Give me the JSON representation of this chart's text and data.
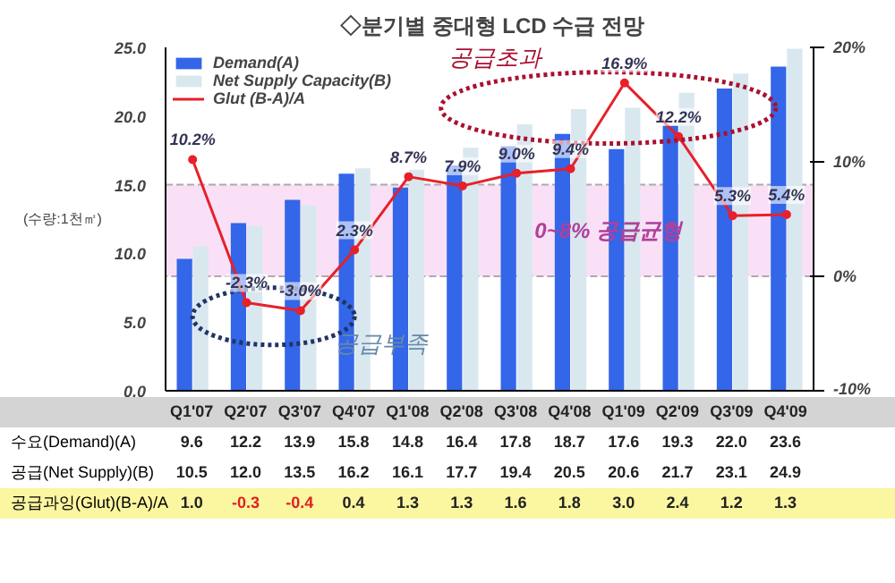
{
  "chart_data": {
    "type": "bar",
    "title": "◇분기별 중대형 LCD 수급 전망",
    "ylabel": "(수량:1천㎡)",
    "categories": [
      "Q1'07",
      "Q2'07",
      "Q3'07",
      "Q4'07",
      "Q1'08",
      "Q2'08",
      "Q3'08",
      "Q4'08",
      "Q1'09",
      "Q2'09",
      "Q3'09",
      "Q4'09"
    ],
    "series": [
      {
        "name": "Demand(A)",
        "color": "#3366e8",
        "values": [
          9.6,
          12.2,
          13.9,
          15.8,
          14.8,
          16.4,
          17.8,
          18.7,
          17.6,
          19.3,
          22.0,
          23.6
        ],
        "value_labels": [
          "9.6",
          "12.2",
          "13.9",
          "15.8",
          "14.8",
          "16.4",
          "17.8",
          "18.7",
          "17.6",
          "19.3",
          "22.0",
          "23.6"
        ]
      },
      {
        "name": "Net Supply Capacity(B)",
        "color": "#d9e8ef",
        "values": [
          10.5,
          12.0,
          13.5,
          16.2,
          16.1,
          17.7,
          19.4,
          20.5,
          20.6,
          21.7,
          23.1,
          24.9
        ],
        "value_labels": [
          "10.5",
          "12.0",
          "13.5",
          "16.2",
          "16.1",
          "17.7",
          "19.4",
          "20.5",
          "20.6",
          "21.7",
          "23.1",
          "24.9"
        ]
      },
      {
        "name": "Glut (B-A)/A",
        "type": "line",
        "axis": "y2",
        "color": "#e8202a",
        "marker": "circle",
        "values": [
          10.2,
          -2.3,
          -3.0,
          2.3,
          8.7,
          7.9,
          9.0,
          9.4,
          16.9,
          12.2,
          5.3,
          5.4
        ],
        "value_labels": [
          "10.2%",
          "-2.3%",
          "-3.0%",
          "2.3%",
          "8.7%",
          "7.9%",
          "9.0%",
          "9.4%",
          "16.9%",
          "12.2%",
          "5.3%",
          "5.4%"
        ]
      }
    ],
    "ylim": [
      0,
      25
    ],
    "yticks": [
      {
        "value": 0,
        "label": "0.0"
      },
      {
        "value": 5,
        "label": "5.0"
      },
      {
        "value": 10,
        "label": "10.0"
      },
      {
        "value": 15,
        "label": "15.0"
      },
      {
        "value": 20,
        "label": "20.0"
      },
      {
        "value": 25,
        "label": "25.0"
      }
    ],
    "y2lim": [
      -10,
      20
    ],
    "y2ticks": [
      {
        "value": -10,
        "label": "-10%"
      },
      {
        "value": 0,
        "label": "0%"
      },
      {
        "value": 10,
        "label": "10%"
      },
      {
        "value": 20,
        "label": "20%"
      }
    ],
    "bands": [
      {
        "axis": "y2",
        "from": 0,
        "to": 8,
        "label": "0~8% 공급균형",
        "color": "#f4c6f0"
      }
    ],
    "annotations": [
      "공급초과",
      "공급부족",
      "수요(Demand)(A)",
      "공급(Net Supply)(B)",
      "공급과잉(Glut)(B-A)/A",
      "1.0",
      "-0.3",
      "-0.4",
      "0.4",
      "1.3",
      "1.3",
      "1.6",
      "1.8",
      "3.0",
      "2.4",
      "1.2",
      "1.3"
    ],
    "legend": "top left"
  }
}
